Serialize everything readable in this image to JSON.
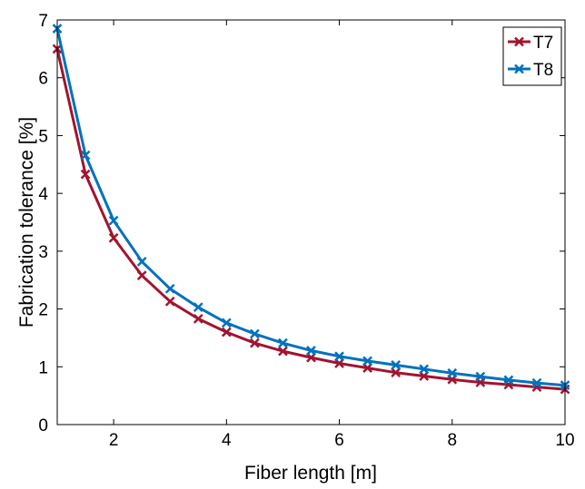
{
  "chart_data": {
    "type": "line",
    "xlabel": "Fiber length [m]",
    "ylabel": "Fabrication tolerance [%]",
    "xlim": [
      1,
      10
    ],
    "ylim": [
      0,
      7
    ],
    "xticks": [
      2,
      4,
      6,
      8,
      10
    ],
    "yticks": [
      0,
      1,
      2,
      3,
      4,
      5,
      6,
      7
    ],
    "grid": false,
    "legend_position": "top-right",
    "x": [
      1,
      1.5,
      2,
      2.5,
      3,
      3.5,
      4,
      4.5,
      5,
      5.5,
      6,
      6.5,
      7,
      7.5,
      8,
      8.5,
      9,
      9.5,
      10
    ],
    "series": [
      {
        "name": "T7",
        "color": "#a2142f",
        "marker": "x",
        "values": [
          6.5,
          4.33,
          3.23,
          2.58,
          2.13,
          1.83,
          1.6,
          1.41,
          1.27,
          1.16,
          1.06,
          0.98,
          0.9,
          0.84,
          0.78,
          0.73,
          0.69,
          0.65,
          0.61
        ]
      },
      {
        "name": "T8",
        "color": "#0072bd",
        "marker": "x",
        "values": [
          6.85,
          4.66,
          3.53,
          2.82,
          2.35,
          2.03,
          1.76,
          1.57,
          1.41,
          1.28,
          1.18,
          1.1,
          1.03,
          0.96,
          0.89,
          0.83,
          0.77,
          0.72,
          0.68
        ]
      }
    ]
  }
}
